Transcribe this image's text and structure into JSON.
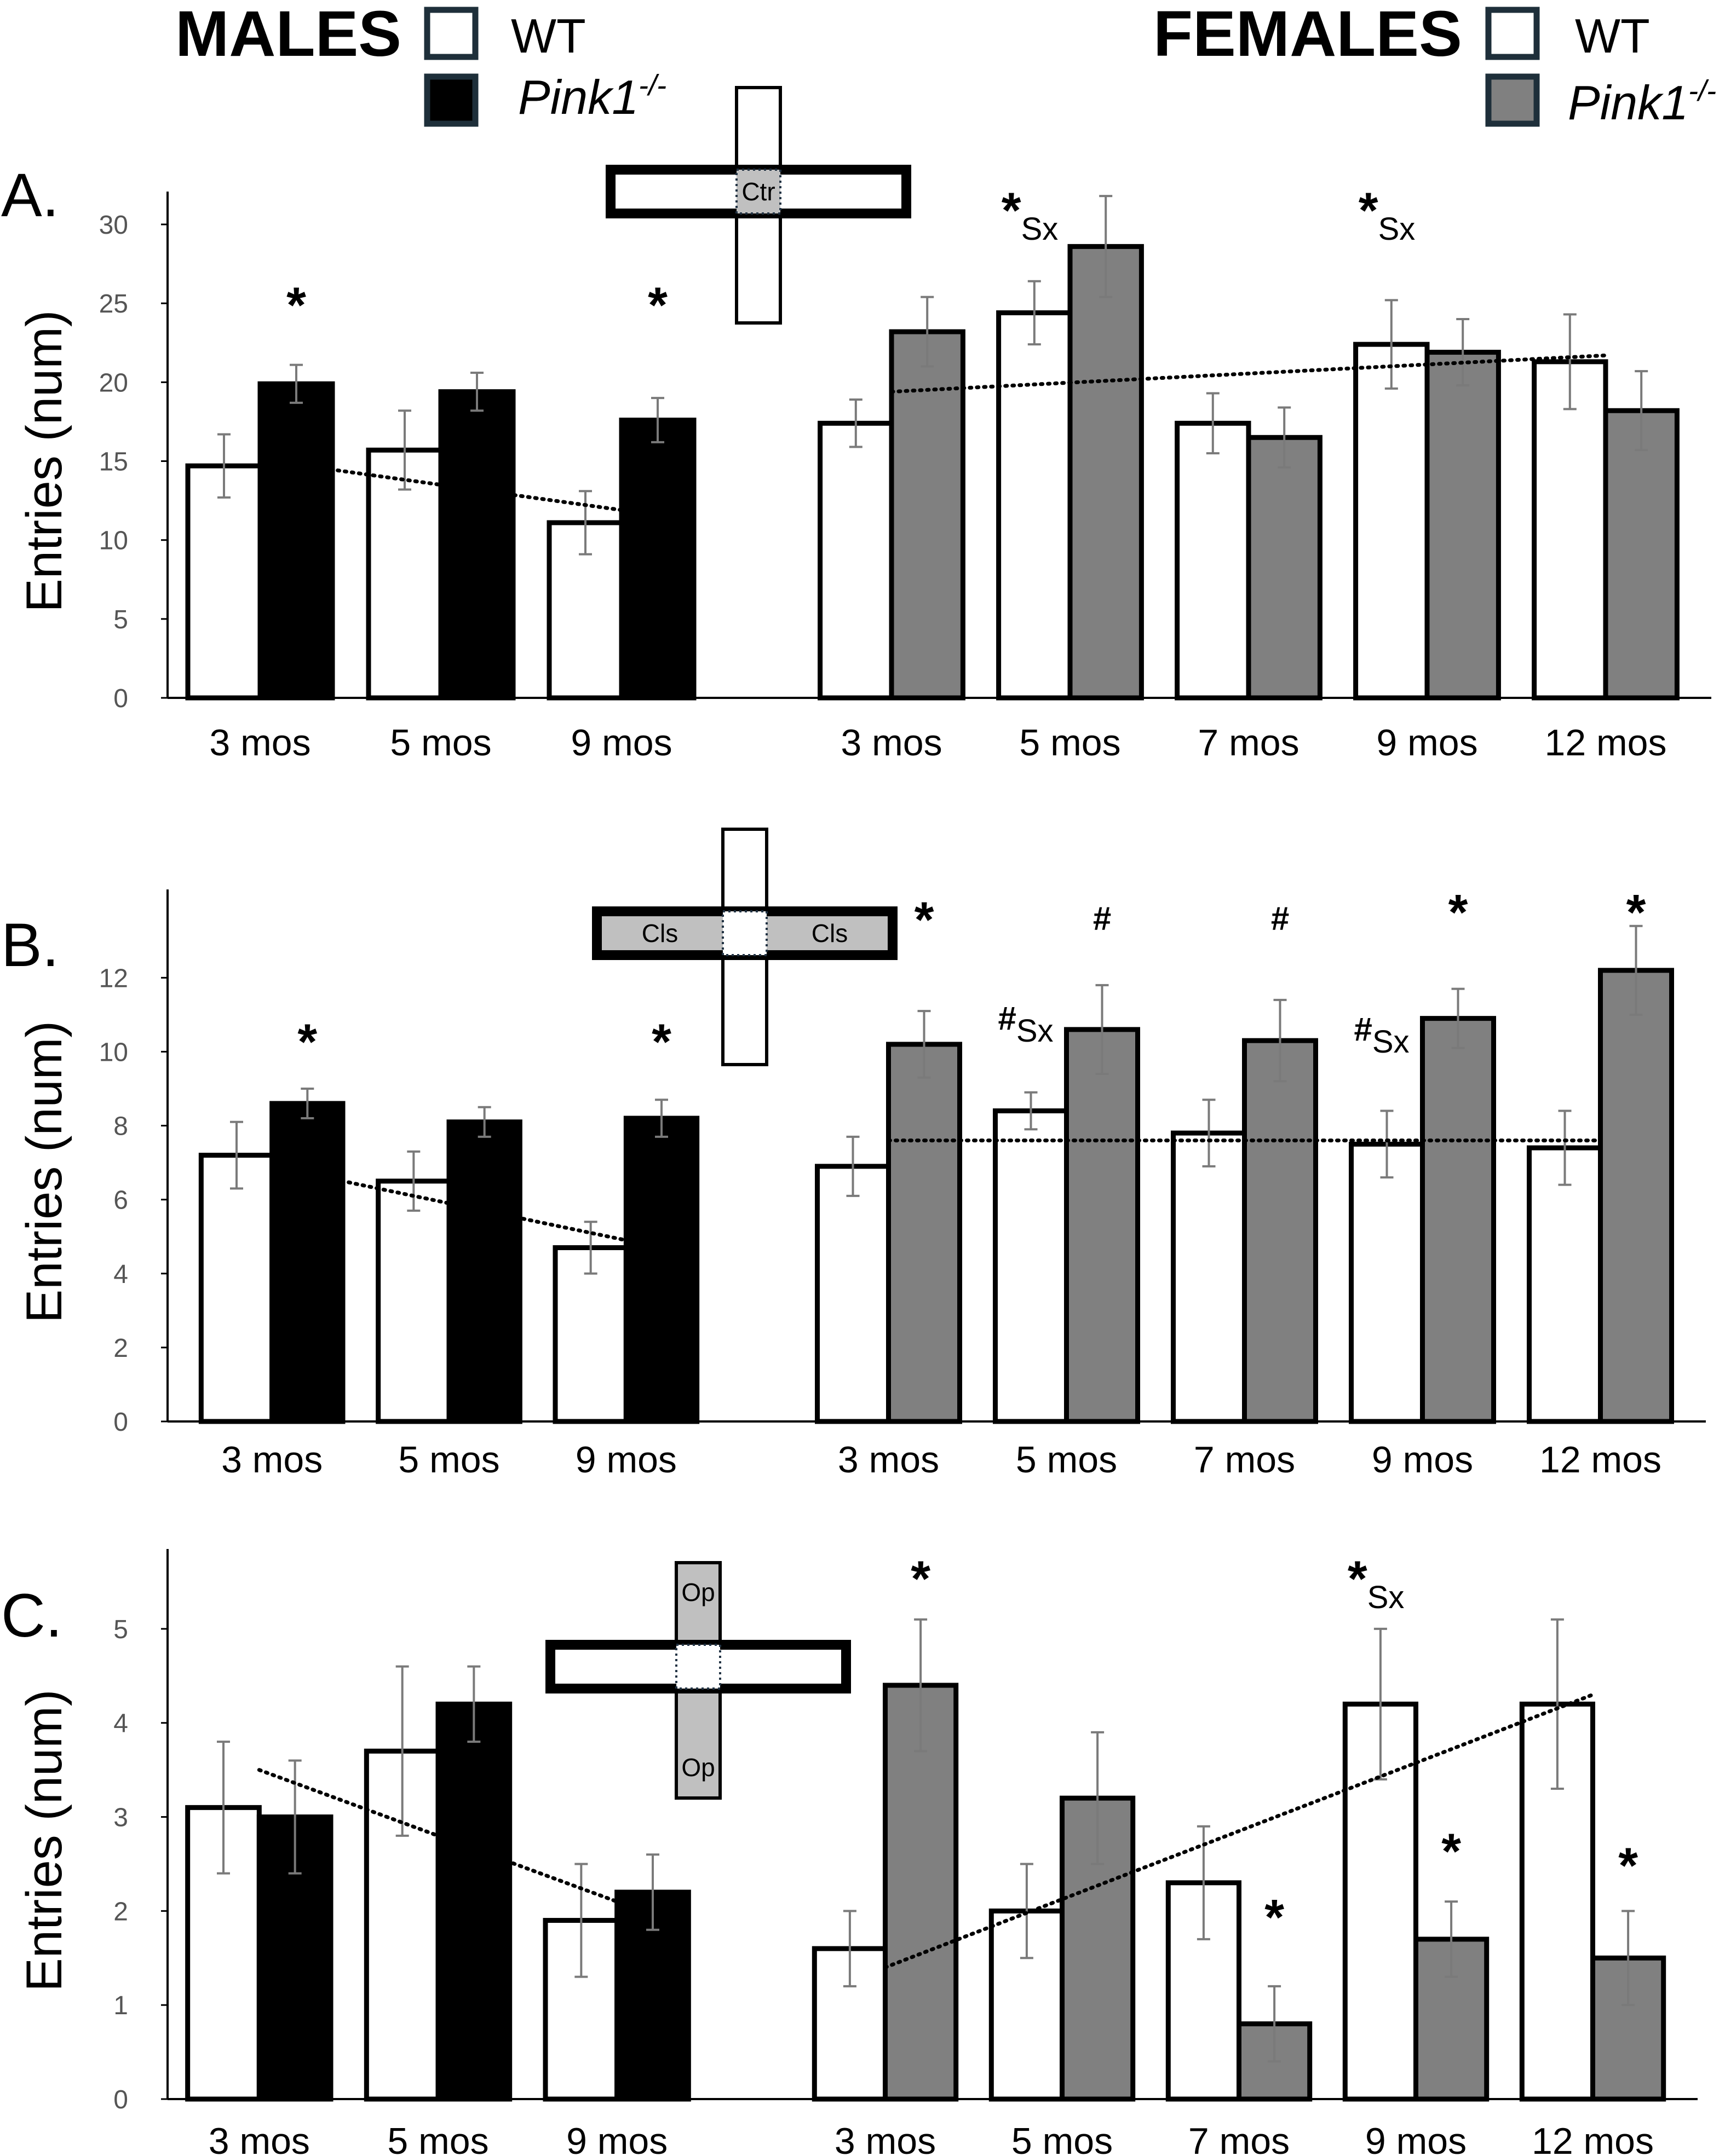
{
  "legend": {
    "males": {
      "title": "MALES",
      "wt_label": "WT",
      "ko_label": "Pink1",
      "ko_sup": "-/-",
      "ko_color": "#000000"
    },
    "females": {
      "title": "FEMALES",
      "wt_label": "WT",
      "ko_label": "Pink1",
      "ko_sup": "-/-",
      "ko_color": "#808080"
    },
    "wt_color": "#ffffff"
  },
  "chart_data": [
    {
      "type": "bar",
      "panel_label": "A.",
      "ylabel": "Entries (num)",
      "ylim": [
        0,
        30
      ],
      "yticks": [
        0,
        5,
        10,
        15,
        20,
        25,
        30
      ],
      "inset": {
        "zone": "center",
        "labels": [
          "Ctr"
        ]
      },
      "groups": [
        {
          "name": "MALES",
          "categories": [
            "3 mos",
            "5 mos",
            "9 mos"
          ],
          "series": [
            {
              "name": "WT",
              "values": [
                14.7,
                15.7,
                11.1
              ],
              "errors": [
                2.0,
                2.5,
                2.0
              ]
            },
            {
              "name": "Pink1-/-",
              "values": [
                19.9,
                19.4,
                17.6
              ],
              "errors": [
                1.2,
                1.2,
                1.4
              ]
            }
          ],
          "annotations": [
            {
              "category": 0,
              "series": 1,
              "symbol": "*",
              "sub": "",
              "value": 23.8
            },
            {
              "category": 2,
              "series": 1,
              "symbol": "*",
              "sub": "",
              "value": 23.8
            }
          ],
          "trend": {
            "from": 15.1,
            "to": 11.9
          }
        },
        {
          "name": "FEMALES",
          "categories": [
            "3 mos",
            "5 mos",
            "7 mos",
            "9 mos",
            "12 mos"
          ],
          "series": [
            {
              "name": "WT",
              "values": [
                17.4,
                24.4,
                17.4,
                22.4,
                21.3
              ],
              "errors": [
                1.5,
                2.0,
                1.9,
                2.8,
                3.0
              ]
            },
            {
              "name": "Pink1-/-",
              "values": [
                23.2,
                28.6,
                16.5,
                21.9,
                18.2
              ],
              "errors": [
                2.2,
                3.2,
                1.9,
                2.1,
                2.5
              ]
            }
          ],
          "annotations": [
            {
              "category": 1,
              "series": 0,
              "symbol": "*",
              "sub": "Sx",
              "value": 29.8
            },
            {
              "category": 3,
              "series": 0,
              "symbol": "*",
              "sub": "Sx",
              "value": 29.8
            }
          ],
          "trend": {
            "from": 19.4,
            "to": 21.7
          }
        }
      ]
    },
    {
      "type": "bar",
      "panel_label": "B.",
      "ylabel": "Entries (num)",
      "ylim": [
        0,
        13.5
      ],
      "yticks": [
        0,
        2,
        4,
        6,
        8,
        10,
        12
      ],
      "inset": {
        "zone": "closed",
        "labels": [
          "Cls",
          "Cls"
        ]
      },
      "groups": [
        {
          "name": "MALES",
          "categories": [
            "3 mos",
            "5 mos",
            "9 mos"
          ],
          "series": [
            {
              "name": "WT",
              "values": [
                7.2,
                6.5,
                4.7
              ],
              "errors": [
                0.9,
                0.8,
                0.7
              ]
            },
            {
              "name": "Pink1-/-",
              "values": [
                8.6,
                8.1,
                8.2
              ],
              "errors": [
                0.4,
                0.4,
                0.5
              ]
            }
          ],
          "annotations": [
            {
              "category": 0,
              "series": 1,
              "symbol": "*",
              "sub": "",
              "value": 9.8
            },
            {
              "category": 2,
              "series": 1,
              "symbol": "*",
              "sub": "",
              "value": 9.8
            }
          ],
          "trend": {
            "from": 6.9,
            "to": 4.9
          }
        },
        {
          "name": "FEMALES",
          "categories": [
            "3 mos",
            "5 mos",
            "7 mos",
            "9 mos",
            "12 mos"
          ],
          "series": [
            {
              "name": "WT",
              "values": [
                6.9,
                8.4,
                7.8,
                7.5,
                7.4
              ],
              "errors": [
                0.8,
                0.5,
                0.9,
                0.9,
                1.0
              ]
            },
            {
              "name": "Pink1-/-",
              "values": [
                10.2,
                10.6,
                10.3,
                10.9,
                12.2
              ],
              "errors": [
                0.9,
                1.2,
                1.1,
                0.8,
                1.2
              ]
            }
          ],
          "annotations": [
            {
              "category": 0,
              "series": 1,
              "symbol": "*",
              "sub": "",
              "value": 13.1
            },
            {
              "category": 1,
              "series": 1,
              "symbol": "#",
              "sub": "",
              "value": 13.3
            },
            {
              "category": 2,
              "series": 1,
              "symbol": "#",
              "sub": "",
              "value": 13.3
            },
            {
              "category": 3,
              "series": 1,
              "symbol": "*",
              "sub": "",
              "value": 13.3
            },
            {
              "category": 4,
              "series": 1,
              "symbol": "*",
              "sub": "",
              "value": 13.3
            },
            {
              "category": 1,
              "series": 0,
              "symbol": "#",
              "sub": "Sx",
              "value": 10.6
            },
            {
              "category": 3,
              "series": 0,
              "symbol": "#",
              "sub": "Sx",
              "value": 10.3
            }
          ],
          "trend": {
            "from": 7.6,
            "to": 7.6
          }
        }
      ]
    },
    {
      "type": "bar",
      "panel_label": "C.",
      "ylabel": "Entries (num)",
      "ylim": [
        0,
        5.5
      ],
      "yticks": [
        0,
        1,
        2,
        3,
        4,
        5
      ],
      "inset": {
        "zone": "open",
        "labels": [
          "Op",
          "Op"
        ]
      },
      "groups": [
        {
          "name": "MALES",
          "categories": [
            "3 mos",
            "5 mos",
            "9 mos"
          ],
          "series": [
            {
              "name": "WT",
              "values": [
                3.1,
                3.7,
                1.9
              ],
              "errors": [
                0.7,
                0.9,
                0.6
              ]
            },
            {
              "name": "Pink1-/-",
              "values": [
                3.0,
                4.2,
                2.2
              ],
              "errors": [
                0.6,
                0.4,
                0.4
              ]
            }
          ],
          "annotations": [],
          "trend": {
            "from": 3.5,
            "to": 2.1
          }
        },
        {
          "name": "FEMALES",
          "categories": [
            "3 mos",
            "5 mos",
            "7 mos",
            "9 mos",
            "12 mos"
          ],
          "series": [
            {
              "name": "WT",
              "values": [
                1.6,
                2.0,
                2.3,
                4.2,
                4.2
              ],
              "errors": [
                0.4,
                0.5,
                0.6,
                0.8,
                0.9
              ]
            },
            {
              "name": "Pink1-/-",
              "values": [
                4.4,
                3.2,
                0.8,
                1.7,
                1.5
              ],
              "errors": [
                0.7,
                0.7,
                0.4,
                0.4,
                0.5
              ]
            }
          ],
          "annotations": [
            {
              "category": 0,
              "series": 1,
              "symbol": "*",
              "sub": "",
              "value": 5.35
            },
            {
              "category": 3,
              "series": 0,
              "symbol": "*",
              "sub": "Sx",
              "value": 5.35
            },
            {
              "category": 2,
              "series": 1,
              "symbol": "*",
              "sub": "",
              "value": 1.75
            },
            {
              "category": 3,
              "series": 1,
              "symbol": "*",
              "sub": "",
              "value": 2.45
            },
            {
              "category": 4,
              "series": 1,
              "symbol": "*",
              "sub": "",
              "value": 2.3
            }
          ],
          "trend": {
            "from": 1.4,
            "to": 4.3
          }
        }
      ]
    }
  ]
}
